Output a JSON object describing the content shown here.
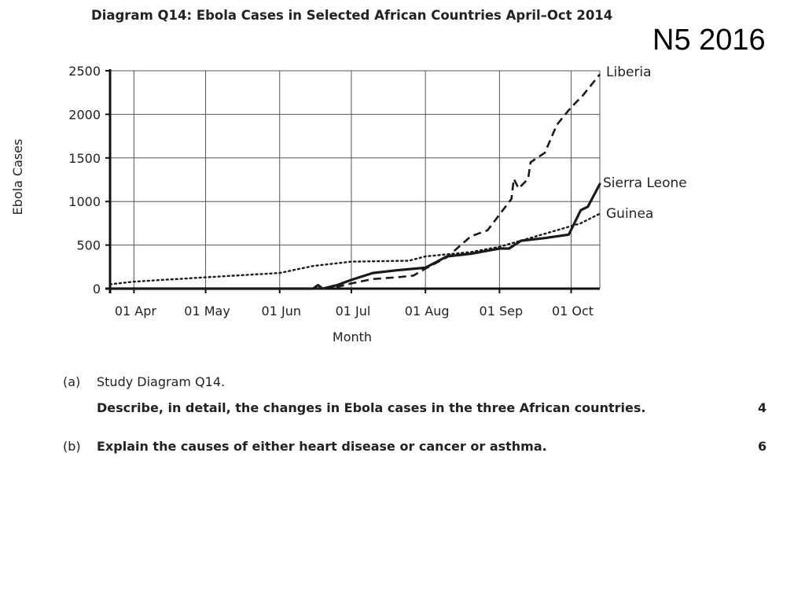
{
  "slide_label": "N5 2016",
  "chart_data": {
    "type": "line",
    "title": "Diagram Q14: Ebola Cases in Selected African Countries April–Oct 2014",
    "xlabel": "Month",
    "ylabel": "Ebola Cases",
    "x_tick_labels": [
      "01 Apr",
      "01 May",
      "01 Jun",
      "01 Jul",
      "01 Aug",
      "01 Sep",
      "01 Oct"
    ],
    "x_range": [
      "2014-03-22",
      "2014-10-13"
    ],
    "yticks": [
      0,
      500,
      1000,
      1500,
      2000,
      2500
    ],
    "ylim": [
      0,
      2500
    ],
    "grid": true,
    "legend": "labels at line ends (right)",
    "series": [
      {
        "name": "Liberia",
        "style": "dashed",
        "points": [
          [
            "2014-03-22",
            0
          ],
          [
            "2014-06-17",
            0
          ],
          [
            "2014-06-25",
            20
          ],
          [
            "2014-07-01",
            60
          ],
          [
            "2014-07-10",
            110
          ],
          [
            "2014-07-20",
            130
          ],
          [
            "2014-07-27",
            150
          ],
          [
            "2014-08-01",
            230
          ],
          [
            "2014-08-10",
            360
          ],
          [
            "2014-08-20",
            600
          ],
          [
            "2014-08-27",
            670
          ],
          [
            "2014-09-01",
            850
          ],
          [
            "2014-09-06",
            1030
          ],
          [
            "2014-09-07",
            1260
          ],
          [
            "2014-09-09",
            1150
          ],
          [
            "2014-09-13",
            1260
          ],
          [
            "2014-09-14",
            1450
          ],
          [
            "2014-09-20",
            1560
          ],
          [
            "2014-09-25",
            1880
          ],
          [
            "2014-10-01",
            2080
          ],
          [
            "2014-10-06",
            2220
          ],
          [
            "2014-10-13",
            2460
          ]
        ]
      },
      {
        "name": "Sierra Leone",
        "style": "solid",
        "points": [
          [
            "2014-03-22",
            0
          ],
          [
            "2014-06-15",
            0
          ],
          [
            "2014-06-17",
            40
          ],
          [
            "2014-06-19",
            0
          ],
          [
            "2014-06-25",
            40
          ],
          [
            "2014-07-01",
            100
          ],
          [
            "2014-07-10",
            180
          ],
          [
            "2014-07-20",
            210
          ],
          [
            "2014-08-01",
            240
          ],
          [
            "2014-08-10",
            370
          ],
          [
            "2014-08-20",
            400
          ],
          [
            "2014-09-01",
            460
          ],
          [
            "2014-09-05",
            460
          ],
          [
            "2014-09-10",
            550
          ],
          [
            "2014-09-20",
            580
          ],
          [
            "2014-09-30",
            620
          ],
          [
            "2014-10-05",
            900
          ],
          [
            "2014-10-08",
            940
          ],
          [
            "2014-10-13",
            1200
          ]
        ]
      },
      {
        "name": "Guinea",
        "style": "dotted",
        "points": [
          [
            "2014-03-22",
            50
          ],
          [
            "2014-04-01",
            80
          ],
          [
            "2014-05-01",
            130
          ],
          [
            "2014-06-01",
            180
          ],
          [
            "2014-06-15",
            260
          ],
          [
            "2014-07-01",
            310
          ],
          [
            "2014-07-25",
            320
          ],
          [
            "2014-08-01",
            370
          ],
          [
            "2014-08-20",
            420
          ],
          [
            "2014-09-01",
            480
          ],
          [
            "2014-09-15",
            590
          ],
          [
            "2014-09-25",
            670
          ],
          [
            "2014-10-05",
            750
          ],
          [
            "2014-10-13",
            860
          ]
        ]
      }
    ]
  },
  "questions": [
    {
      "letter": "(a)",
      "lines": [
        {
          "text": "Study Diagram Q14.",
          "bold": false
        },
        {
          "text": "Describe, in detail, the changes in Ebola cases in the three African countries.",
          "bold": true,
          "marks": "4"
        }
      ]
    },
    {
      "letter": "(b)",
      "lines": [
        {
          "text": "Explain the causes of either heart disease or cancer or asthma.",
          "bold": true,
          "marks": "6"
        }
      ]
    }
  ]
}
